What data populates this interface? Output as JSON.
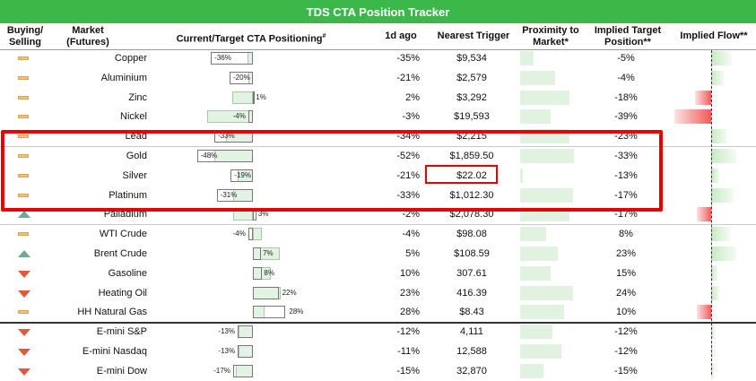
{
  "title": "TDS CTA Position Tracker",
  "headers": {
    "buying_selling": "Buying/\nSelling",
    "market": "Market\n(Futures)",
    "positioning": "Current/Target CTA Positioning",
    "positioning_sup": "#",
    "day_ago": "1d ago",
    "nearest_trigger": "Nearest Trigger",
    "proximity": "Proximity to\nMarket*",
    "implied_target": "Implied Target\nPosition**",
    "implied_flow": "Implied Flow**"
  },
  "colors": {
    "title_bg": "#3cb84a",
    "highlight": "#e60000",
    "target_fill": "#e3f3e3",
    "flow_negative": "#f25a5a",
    "signal_neutral": "#f2c27a",
    "signal_buy": "#6aaa96",
    "signal_sell": "#e2583b"
  },
  "rows": [
    {
      "signal": "neutral",
      "market": "Copper",
      "current_label": "-36%",
      "current": -36,
      "target": -5,
      "day_ago": "-35%",
      "trigger": "$9,534",
      "proximity": 0.23,
      "implied": "-5%",
      "flow": 0.5
    },
    {
      "signal": "neutral",
      "market": "Aluminium",
      "current_label": "-20%",
      "current": -20,
      "target": -4,
      "day_ago": "-21%",
      "trigger": "$2,579",
      "proximity": 0.6,
      "implied": "-4%",
      "flow": 0.3
    },
    {
      "signal": "neutral",
      "market": "Zinc",
      "current_label": "1%",
      "current": 1,
      "target": -18,
      "day_ago": "2%",
      "trigger": "$3,292",
      "proximity": 0.85,
      "implied": "-18%",
      "flow": -0.4
    },
    {
      "signal": "neutral",
      "market": "Nickel",
      "current_label": "-4%",
      "current": -4,
      "target": -39,
      "day_ago": "-3%",
      "trigger": "$19,593",
      "proximity": 0.53,
      "implied": "-39%",
      "flow": -0.9
    },
    {
      "signal": "neutral",
      "market": "Lead",
      "current_label": "-33%",
      "current": -33,
      "target": -23,
      "day_ago": "-34%",
      "trigger": "$2,215",
      "proximity": 0.85,
      "implied": "-23%",
      "flow": 0.4
    },
    {
      "signal": "neutral",
      "market": "Gold",
      "current_label": "-48%",
      "current": -48,
      "target": -33,
      "day_ago": "-52%",
      "trigger": "$1,859.50",
      "proximity": 0.92,
      "implied": "-33%",
      "flow": 0.6
    },
    {
      "signal": "neutral",
      "market": "Silver",
      "current_label": "-19%",
      "current": -19,
      "target": -13,
      "day_ago": "-21%",
      "trigger": "$22.02",
      "proximity": 0.04,
      "implied": "-13%",
      "flow": 0.2
    },
    {
      "signal": "neutral",
      "market": "Platinum",
      "current_label": "-31%",
      "current": -31,
      "target": -17,
      "day_ago": "-33%",
      "trigger": "$1,012.30",
      "proximity": 0.9,
      "implied": "-17%",
      "flow": 0.55
    },
    {
      "signal": "buy",
      "market": "Palladium",
      "current_label": "3%",
      "current": 3,
      "target": -17,
      "day_ago": "-2%",
      "trigger": "$2,078.30",
      "proximity": 0.85,
      "implied": "-17%",
      "flow": -0.35
    },
    {
      "signal": "neutral",
      "market": "WTI Crude",
      "current_label": "-4%",
      "current": -4,
      "target": 8,
      "day_ago": "-4%",
      "trigger": "$98.08",
      "proximity": 0.45,
      "implied": "8%",
      "flow": 0.45
    },
    {
      "signal": "buy",
      "market": "Brent Crude",
      "current_label": "7%",
      "current": 7,
      "target": 23,
      "day_ago": "5%",
      "trigger": "$108.59",
      "proximity": 0.65,
      "implied": "23%",
      "flow": 0.6
    },
    {
      "signal": "sell",
      "market": "Gasoline",
      "current_label": "8%",
      "current": 8,
      "target": 15,
      "day_ago": "10%",
      "trigger": "307.61",
      "proximity": 0.52,
      "implied": "15%",
      "flow": 0.15
    },
    {
      "signal": "sell",
      "market": "Heating Oil",
      "current_label": "22%",
      "current": 22,
      "target": 24,
      "day_ago": "23%",
      "trigger": "416.39",
      "proximity": 0.9,
      "implied": "24%",
      "flow": 0.2
    },
    {
      "signal": "neutral",
      "market": "HH Natural Gas",
      "current_label": "28%",
      "current": 28,
      "target": 10,
      "day_ago": "28%",
      "trigger": "$8.43",
      "proximity": 0.75,
      "implied": "10%",
      "flow": -0.35
    },
    {
      "signal": "sell",
      "market": "E-mini S&P",
      "current_label": "-13%",
      "current": -13,
      "target": -12,
      "day_ago": "-12%",
      "trigger": "4,111",
      "proximity": 0.55,
      "implied": "-12%",
      "flow": 0.08
    },
    {
      "signal": "sell",
      "market": "E-mini Nasdaq",
      "current_label": "-13%",
      "current": -13,
      "target": -12,
      "day_ago": "-11%",
      "trigger": "12,588",
      "proximity": 0.7,
      "implied": "-12%",
      "flow": 0.05
    },
    {
      "signal": "sell",
      "market": "E-mini Dow",
      "current_label": "-17%",
      "current": -17,
      "target": -15,
      "day_ago": "-15%",
      "trigger": "32,870",
      "proximity": 0.4,
      "implied": "-15%",
      "flow": 0.06
    }
  ]
}
